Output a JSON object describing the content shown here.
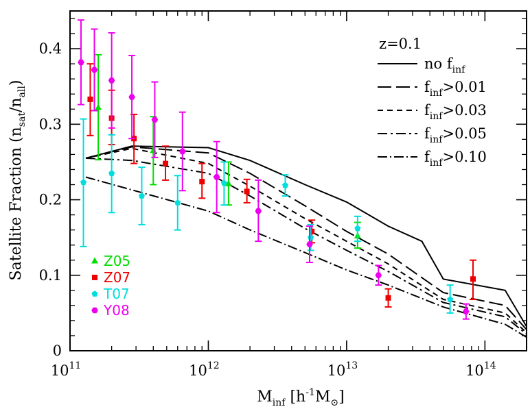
{
  "chart_data": {
    "type": "line",
    "xlabel": {
      "main": "M",
      "sub": "inf",
      "unit_open": " [h",
      "unit_sup": "-1",
      "unit_main": "M",
      "unit_sym": "⊙",
      "unit_close": "]"
    },
    "ylabel": {
      "main": "Satellite Fraction (n",
      "sub1": "sat",
      "mid": "/n",
      "sub2": "all",
      "close": ")"
    },
    "xscale": "log",
    "xlim": [
      100000000000.0,
      200000000000000.0
    ],
    "ylim": [
      0,
      0.45
    ],
    "x_ticks": [
      {
        "value": 100000000000.0,
        "base": "10",
        "exp": "11"
      },
      {
        "value": 1000000000000.0,
        "base": "10",
        "exp": "12"
      },
      {
        "value": 10000000000000.0,
        "base": "10",
        "exp": "13"
      },
      {
        "value": 100000000000000.0,
        "base": "10",
        "exp": "14"
      }
    ],
    "y_ticks": [
      {
        "value": 0,
        "label": "0"
      },
      {
        "value": 0.1,
        "label": "0.1"
      },
      {
        "value": 0.2,
        "label": "0.2"
      },
      {
        "value": 0.3,
        "label": "0.3"
      },
      {
        "value": 0.4,
        "label": "0.4"
      }
    ],
    "annotation": "z=0.1",
    "lines": [
      {
        "label_main": "no  f",
        "label_sub": "inf",
        "label_tail": "",
        "dash": "none",
        "x": [
          130000000000.0,
          280000000000.0,
          1000000000000.0,
          2000000000000.0,
          5000000000000.0,
          10000000000000.0,
          20000000000000.0,
          35000000000000.0,
          50000000000000.0,
          140000000000000.0,
          200000000000000.0
        ],
        "y": [
          0.255,
          0.271,
          0.269,
          0.252,
          0.22,
          0.197,
          0.165,
          0.145,
          0.095,
          0.08,
          0.032
        ]
      },
      {
        "label_main": "f",
        "label_sub": "inf",
        "label_tail": ">0.01",
        "dash": "20,7",
        "x": [
          130000000000.0,
          280000000000.0,
          1000000000000.0,
          2000000000000.0,
          5000000000000.0,
          10000000000000.0,
          20000000000000.0,
          50000000000000.0,
          140000000000000.0,
          200000000000000.0
        ],
        "y": [
          0.255,
          0.27,
          0.262,
          0.235,
          0.192,
          0.158,
          0.128,
          0.077,
          0.06,
          0.028
        ]
      },
      {
        "label_main": "f",
        "label_sub": "inf",
        "label_tail": ">0.03",
        "dash": "8,6",
        "x": [
          130000000000.0,
          280000000000.0,
          1000000000000.0,
          2000000000000.0,
          5000000000000.0,
          10000000000000.0,
          20000000000000.0,
          50000000000000.0,
          140000000000000.0,
          200000000000000.0
        ],
        "y": [
          0.255,
          0.268,
          0.248,
          0.218,
          0.175,
          0.145,
          0.115,
          0.068,
          0.05,
          0.024
        ]
      },
      {
        "label_main": "f",
        "label_sub": "inf",
        "label_tail": ">0.05",
        "dash": "14,5,3,5",
        "x": [
          130000000000.0,
          280000000000.0,
          1000000000000.0,
          2000000000000.0,
          5000000000000.0,
          10000000000000.0,
          20000000000000.0,
          50000000000000.0,
          140000000000000.0,
          200000000000000.0
        ],
        "y": [
          0.255,
          0.252,
          0.235,
          0.205,
          0.162,
          0.133,
          0.105,
          0.064,
          0.045,
          0.022
        ]
      },
      {
        "label_main": "f",
        "label_sub": "inf",
        "label_tail": ">0.10",
        "dash": "14,4,2,4",
        "x": [
          130000000000.0,
          280000000000.0,
          1000000000000.0,
          2000000000000.0,
          5000000000000.0,
          10000000000000.0,
          20000000000000.0,
          50000000000000.0,
          140000000000000.0,
          200000000000000.0
        ],
        "y": [
          0.23,
          0.213,
          0.185,
          0.16,
          0.13,
          0.107,
          0.087,
          0.058,
          0.035,
          0.018
        ]
      }
    ],
    "datasets": [
      {
        "name": "Z05",
        "color": "#00dd00",
        "marker": "triangle",
        "points": [
          {
            "x": 160000000000.0,
            "y": 0.322,
            "lo": 0.253,
            "hi": 0.392
          },
          {
            "x": 400000000000.0,
            "y": 0.265,
            "lo": 0.22,
            "hi": 0.31
          },
          {
            "x": 1400000000000.0,
            "y": 0.221,
            "lo": 0.193,
            "hi": 0.25
          },
          {
            "x": 12000000000000.0,
            "y": 0.152,
            "lo": 0.136,
            "hi": 0.17
          }
        ]
      },
      {
        "name": "Z07",
        "color": "#ee0000",
        "marker": "square",
        "points": [
          {
            "x": 140000000000.0,
            "y": 0.333,
            "lo": 0.285,
            "hi": 0.38
          },
          {
            "x": 200000000000.0,
            "y": 0.308,
            "lo": 0.273,
            "hi": 0.345
          },
          {
            "x": 290000000000.0,
            "y": 0.281,
            "lo": 0.248,
            "hi": 0.313
          },
          {
            "x": 490000000000.0,
            "y": 0.248,
            "lo": 0.226,
            "hi": 0.271
          },
          {
            "x": 900000000000.0,
            "y": 0.224,
            "lo": 0.202,
            "hi": 0.248
          },
          {
            "x": 1900000000000.0,
            "y": 0.211,
            "lo": 0.196,
            "hi": 0.227
          },
          {
            "x": 5600000000000.0,
            "y": 0.158,
            "lo": 0.143,
            "hi": 0.173
          },
          {
            "x": 20000000000000.0,
            "y": 0.07,
            "lo": 0.058,
            "hi": 0.082
          },
          {
            "x": 82000000000000.0,
            "y": 0.095,
            "lo": 0.068,
            "hi": 0.12
          }
        ]
      },
      {
        "name": "T07",
        "color": "#00dddd",
        "marker": "pentagon",
        "points": [
          {
            "x": 125000000000.0,
            "y": 0.223,
            "lo": 0.138,
            "hi": 0.307
          },
          {
            "x": 200000000000.0,
            "y": 0.235,
            "lo": 0.183,
            "hi": 0.286
          },
          {
            "x": 330000000000.0,
            "y": 0.205,
            "lo": 0.167,
            "hi": 0.243
          },
          {
            "x": 600000000000.0,
            "y": 0.196,
            "lo": 0.16,
            "hi": 0.232
          },
          {
            "x": 1300000000000.0,
            "y": 0.222,
            "lo": 0.193,
            "hi": 0.25
          },
          {
            "x": 3600000000000.0,
            "y": 0.219,
            "lo": 0.205,
            "hi": 0.233
          },
          {
            "x": 5500000000000.0,
            "y": 0.15,
            "lo": 0.133,
            "hi": 0.167
          },
          {
            "x": 12000000000000.0,
            "y": 0.162,
            "lo": 0.145,
            "hi": 0.178
          },
          {
            "x": 56000000000000.0,
            "y": 0.068,
            "lo": 0.05,
            "hi": 0.087
          }
        ]
      },
      {
        "name": "Y08",
        "color": "#ee00ee",
        "marker": "hexagon",
        "points": [
          {
            "x": 120000000000.0,
            "y": 0.382,
            "lo": 0.326,
            "hi": 0.438
          },
          {
            "x": 150000000000.0,
            "y": 0.372,
            "lo": 0.318,
            "hi": 0.426
          },
          {
            "x": 200000000000.0,
            "y": 0.358,
            "lo": 0.295,
            "hi": 0.421
          },
          {
            "x": 280000000000.0,
            "y": 0.336,
            "lo": 0.281,
            "hi": 0.391
          },
          {
            "x": 410000000000.0,
            "y": 0.306,
            "lo": 0.256,
            "hi": 0.356
          },
          {
            "x": 650000000000.0,
            "y": 0.264,
            "lo": 0.212,
            "hi": 0.316
          },
          {
            "x": 1150000000000.0,
            "y": 0.23,
            "lo": 0.183,
            "hi": 0.277
          },
          {
            "x": 2300000000000.0,
            "y": 0.185,
            "lo": 0.145,
            "hi": 0.226
          },
          {
            "x": 5400000000000.0,
            "y": 0.141,
            "lo": 0.117,
            "hi": 0.165
          },
          {
            "x": 17000000000000.0,
            "y": 0.1,
            "lo": 0.087,
            "hi": 0.113
          },
          {
            "x": 73000000000000.0,
            "y": 0.052,
            "lo": 0.042,
            "hi": 0.062
          }
        ]
      }
    ]
  }
}
